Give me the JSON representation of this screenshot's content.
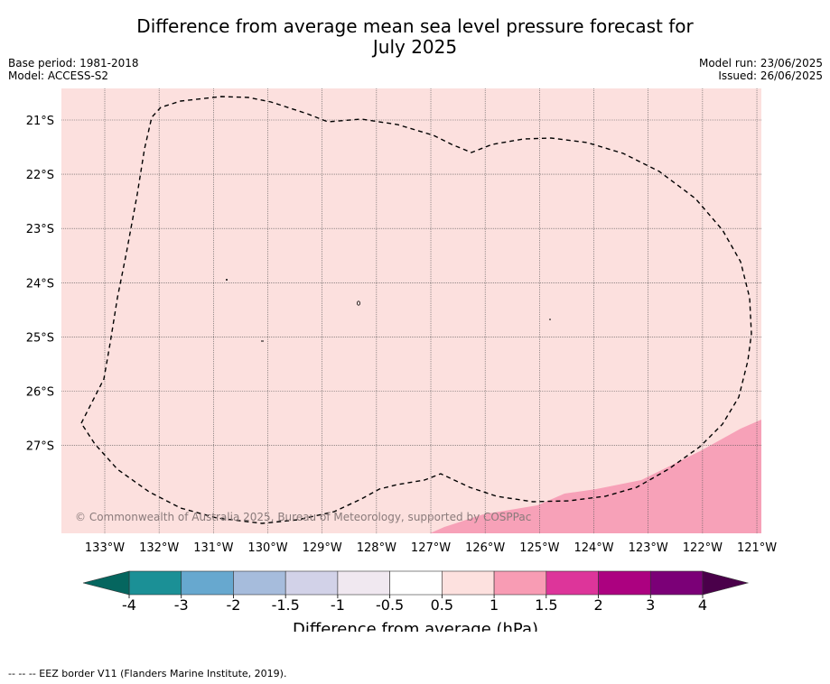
{
  "title_line1": "Difference from average mean sea level pressure forecast for",
  "title_line2": "July 2025",
  "base_period": "Base period: 1981-2018",
  "model": "Model: ACCESS-S2",
  "model_run": "Model run: 23/06/2025",
  "issued": "Issued: 26/06/2025",
  "copyright": "© Commonwealth of Australia 2025, Bureau of Meteorology, supported by COSPPac",
  "map": {
    "lat_labels": [
      "21°S",
      "22°S",
      "23°S",
      "24°S",
      "25°S",
      "26°S",
      "27°S"
    ],
    "lon_labels": [
      "133°W",
      "132°W",
      "131°W",
      "130°W",
      "129°W",
      "128°W",
      "127°W",
      "126°W",
      "125°W",
      "124°W",
      "123°W",
      "122°W",
      "121°W"
    ],
    "background_color": "#fce0de",
    "anomaly_patch_color": "#f7a1b8"
  },
  "colorbar": {
    "label": "Difference from average (hPa)",
    "ticks": [
      "-4",
      "-3",
      "-2",
      "-1.5",
      "-1",
      "-0.5",
      "0.5",
      "1",
      "1.5",
      "2",
      "3",
      "4"
    ],
    "colors": [
      "#1b9096",
      "#67a8cf",
      "#a6bcdc",
      "#d2d2e8",
      "#f0e8f0",
      "#ffffff",
      "#fde1df",
      "#f89cb4",
      "#dd359a",
      "#ac0180",
      "#7b0077"
    ],
    "under_color": "#05665f",
    "over_color": "#4a004a"
  },
  "footer_legend": "--  --  -- EEZ border V11 (Flanders Marine Institute, 2019)."
}
